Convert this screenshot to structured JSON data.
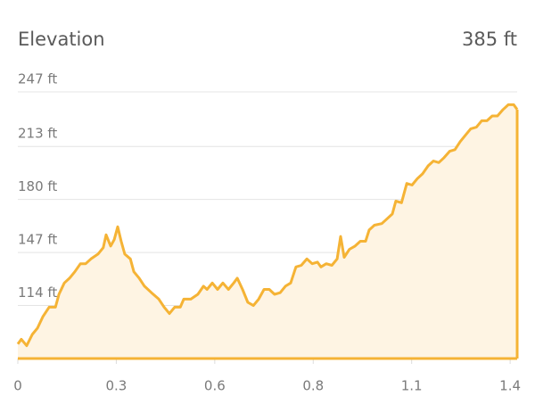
{
  "chart_data": {
    "type": "area",
    "title": "Elevation",
    "summary": "385 ft",
    "x": [
      0,
      0.01,
      0.025,
      0.041,
      0.056,
      0.071,
      0.089,
      0.107,
      0.117,
      0.132,
      0.147,
      0.162,
      0.178,
      0.193,
      0.208,
      0.228,
      0.243,
      0.251,
      0.264,
      0.274,
      0.284,
      0.294,
      0.304,
      0.32,
      0.33,
      0.345,
      0.36,
      0.38,
      0.401,
      0.416,
      0.431,
      0.446,
      0.462,
      0.472,
      0.492,
      0.512,
      0.528,
      0.538,
      0.553,
      0.568,
      0.583,
      0.599,
      0.614,
      0.624,
      0.639,
      0.654,
      0.67,
      0.685,
      0.7,
      0.715,
      0.73,
      0.746,
      0.761,
      0.776,
      0.791,
      0.806,
      0.822,
      0.837,
      0.852,
      0.862,
      0.877,
      0.893,
      0.908,
      0.918,
      0.928,
      0.943,
      0.959,
      0.974,
      0.989,
      0.999,
      1.014,
      1.035,
      1.05,
      1.065,
      1.075,
      1.091,
      1.106,
      1.121,
      1.136,
      1.151,
      1.167,
      1.182,
      1.197,
      1.212,
      1.228,
      1.243,
      1.258,
      1.273,
      1.288,
      1.304,
      1.319,
      1.334,
      1.349,
      1.364,
      1.38,
      1.395,
      1.41,
      1.42
    ],
    "values": [
      90,
      93,
      89,
      96,
      100,
      107,
      113,
      113,
      121,
      128,
      131,
      135,
      140,
      140,
      143,
      146,
      150,
      158,
      151,
      155,
      163,
      154,
      146,
      143,
      135,
      131,
      126,
      122,
      118,
      113,
      109,
      113,
      113,
      118,
      118,
      121,
      126,
      124,
      128,
      124,
      128,
      124,
      128,
      131,
      124,
      116,
      114,
      118,
      124,
      124,
      121,
      122,
      126,
      128,
      138,
      139,
      143,
      140,
      141,
      138,
      140,
      139,
      143,
      157,
      144,
      149,
      151,
      154,
      154,
      161,
      164,
      165,
      168,
      171,
      179,
      178,
      190,
      189,
      193,
      196,
      201,
      204,
      203,
      206,
      210,
      211,
      216,
      220,
      224,
      225,
      229,
      229,
      232,
      232,
      236,
      239,
      239,
      236
    ],
    "color": "#f5b335",
    "fill_color": "#fef4e3",
    "xlim": [
      0,
      1.42
    ],
    "xticks": [
      0,
      {
        "value": 0.28,
        "label": "0.3"
      },
      {
        "value": 0.56,
        "label": "0.6"
      },
      {
        "value": 0.84,
        "label": "0.8"
      },
      {
        "value": 1.12,
        "label": "1.1"
      },
      {
        "value": 1.4,
        "label": "1.4"
      }
    ],
    "ylim": [
      81,
      247
    ],
    "yticks": [
      {
        "value": 114,
        "label": "114 ft"
      },
      {
        "value": 147,
        "label": "147 ft"
      },
      {
        "value": 180,
        "label": "180 ft"
      },
      {
        "value": 213,
        "label": "213 ft"
      },
      {
        "value": 247,
        "label": "247 ft"
      }
    ],
    "grid": true
  }
}
